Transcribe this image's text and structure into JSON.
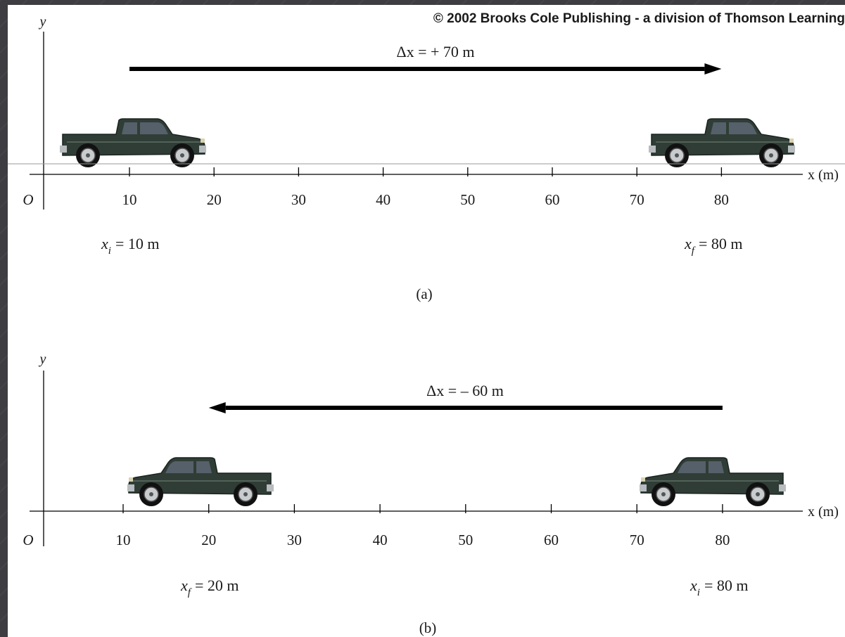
{
  "copyright": "© 2002 Brooks Cole Publishing - a division of Thomson Learning",
  "origin_label": "O",
  "y_axis_label": "y",
  "x_axis_label": "x (m)",
  "panels": [
    {
      "caption": "(a)",
      "ticks": [
        "10",
        "20",
        "30",
        "40",
        "50",
        "60",
        "70",
        "80"
      ],
      "delta_label": "Δx = + 70 m",
      "initial": {
        "symbol": "x",
        "subscript": "i",
        "value": "= 10 m",
        "position_m": 10
      },
      "final": {
        "symbol": "x",
        "subscript": "f",
        "value": "= 80 m",
        "position_m": 80
      },
      "arrow": {
        "from_m": 10,
        "to_m": 80,
        "direction": "right"
      },
      "truck_facing": "right"
    },
    {
      "caption": "(b)",
      "ticks": [
        "10",
        "20",
        "30",
        "40",
        "50",
        "60",
        "70",
        "80"
      ],
      "delta_label": "Δx = – 60 m",
      "initial": {
        "symbol": "x",
        "subscript": "i",
        "value": "= 80 m",
        "position_m": 80
      },
      "final": {
        "symbol": "x",
        "subscript": "f",
        "value": "= 20 m",
        "position_m": 20
      },
      "arrow": {
        "from_m": 80,
        "to_m": 20,
        "direction": "left"
      },
      "truck_facing": "left"
    }
  ],
  "colors": {
    "truck_body": "#2f3d36",
    "arrow": "#000000",
    "frame": "#3e3e42"
  }
}
